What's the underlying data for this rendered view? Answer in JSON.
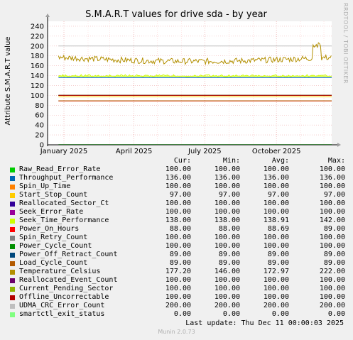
{
  "title": "S.M.A.R.T values for drive sda - by year",
  "side_label": "RRDTOOL / TOBI OETIKER",
  "ylabel": "Attribute S.M.A.R.T value",
  "headers": {
    "cur": "Cur:",
    "min": "Min:",
    "avg": "Avg:",
    "max": "Max:"
  },
  "last_update": "Last update: Thu Dec 11 00:00:03 2025",
  "footer": "Munin 2.0.73",
  "chart_data": {
    "type": "line",
    "title": "S.M.A.R.T values for drive sda - by year",
    "ylabel": "Attribute S.M.A.R.T value",
    "ylim": [
      0,
      250
    ],
    "yticks": [
      0,
      20,
      40,
      60,
      80,
      100,
      120,
      140,
      160,
      180,
      200,
      220,
      240
    ],
    "ytick_labels": [
      "0",
      "20",
      "40",
      "60",
      "80",
      "100",
      "120",
      "140",
      "160",
      "180",
      "200",
      "220",
      "240"
    ],
    "x_ticks": [
      "January 2025",
      "April 2025",
      "July 2025",
      "October 2025"
    ],
    "x_range": [
      "2024-12-11",
      "2025-12-11"
    ],
    "data_start": "2024-12-25",
    "grid": true,
    "series": [
      {
        "name": "Raw_Read_Error_Rate",
        "color": "#00cc00",
        "cur": "100.00",
        "min": "100.00",
        "avg": "100.00",
        "max": "100.00",
        "level": 100
      },
      {
        "name": "Throughput_Performance",
        "color": "#0066b3",
        "cur": "136.00",
        "min": "136.00",
        "avg": "136.00",
        "max": "136.00",
        "level": 136
      },
      {
        "name": "Spin_Up_Time",
        "color": "#ff8000",
        "cur": "100.00",
        "min": "100.00",
        "avg": "100.00",
        "max": "100.00",
        "level": 100
      },
      {
        "name": "Start_Stop_Count",
        "color": "#ffcc00",
        "cur": "97.00",
        "min": "97.00",
        "avg": "97.00",
        "max": "97.00",
        "level": 97
      },
      {
        "name": "Reallocated_Sector_Ct",
        "color": "#330099",
        "cur": "100.00",
        "min": "100.00",
        "avg": "100.00",
        "max": "100.00",
        "level": 100
      },
      {
        "name": "Seek_Error_Rate",
        "color": "#990099",
        "cur": "100.00",
        "min": "100.00",
        "avg": "100.00",
        "max": "100.00",
        "level": 100
      },
      {
        "name": "Seek_Time_Performance",
        "color": "#ccff00",
        "cur": "138.00",
        "min": "138.00",
        "avg": "138.91",
        "max": "142.00",
        "level": 138.91
      },
      {
        "name": "Power_On_Hours",
        "color": "#ff0000",
        "cur": "88.00",
        "min": "88.00",
        "avg": "88.69",
        "max": "89.00",
        "level": 88.69
      },
      {
        "name": "Spin_Retry_Count",
        "color": "#808080",
        "cur": "100.00",
        "min": "100.00",
        "avg": "100.00",
        "max": "100.00",
        "level": 100
      },
      {
        "name": "Power_Cycle_Count",
        "color": "#008f00",
        "cur": "100.00",
        "min": "100.00",
        "avg": "100.00",
        "max": "100.00",
        "level": 100
      },
      {
        "name": "Power_Off_Retract_Count",
        "color": "#00487d",
        "cur": "89.00",
        "min": "89.00",
        "avg": "89.00",
        "max": "89.00",
        "level": 89
      },
      {
        "name": "Load_Cycle_Count",
        "color": "#b35a00",
        "cur": "89.00",
        "min": "89.00",
        "avg": "89.00",
        "max": "89.00",
        "level": 89
      },
      {
        "name": "Temperature_Celsius",
        "color": "#b38f00",
        "cur": "177.20",
        "min": "146.00",
        "avg": "172.97",
        "max": "222.00",
        "level": 172.97
      },
      {
        "name": "Reallocated_Event_Count",
        "color": "#6b006b",
        "cur": "100.00",
        "min": "100.00",
        "avg": "100.00",
        "max": "100.00",
        "level": 100
      },
      {
        "name": "Current_Pending_Sector",
        "color": "#8fb300",
        "cur": "100.00",
        "min": "100.00",
        "avg": "100.00",
        "max": "100.00",
        "level": 100
      },
      {
        "name": "Offline_Uncorrectable",
        "color": "#b30000",
        "cur": "100.00",
        "min": "100.00",
        "avg": "100.00",
        "max": "100.00",
        "level": 100
      },
      {
        "name": "UDMA_CRC_Error_Count",
        "color": "#bebebe",
        "cur": "200.00",
        "min": "200.00",
        "avg": "200.00",
        "max": "200.00",
        "level": 200
      },
      {
        "name": "smartctl_exit_status",
        "color": "#80ff80",
        "cur": "0.00",
        "min": "0.00",
        "avg": "0.00",
        "max": "0.00",
        "level": 0
      }
    ]
  }
}
